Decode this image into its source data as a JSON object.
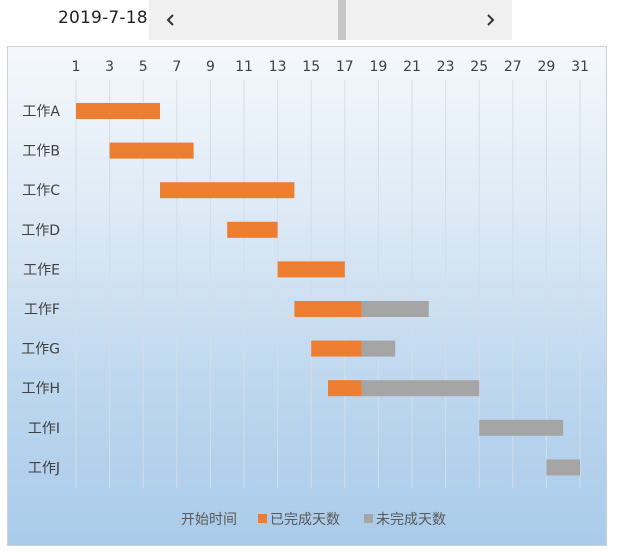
{
  "toolbar": {
    "date": "2019-7-18",
    "prev_icon": "chevron-left-icon",
    "next_icon": "chevron-right-icon"
  },
  "chart_data": {
    "type": "bar",
    "orientation": "horizontal-stacked",
    "title": "",
    "x_ticks": [
      1,
      3,
      5,
      7,
      9,
      11,
      13,
      15,
      17,
      19,
      21,
      23,
      25,
      27,
      29,
      31
    ],
    "xlim": [
      1,
      31
    ],
    "x_axis_position": "top",
    "grid": true,
    "categories": [
      "工作A",
      "工作B",
      "工作C",
      "工作D",
      "工作E",
      "工作F",
      "工作G",
      "工作H",
      "工作I",
      "工作J"
    ],
    "series": [
      {
        "name": "开始时间",
        "values": [
          1,
          3,
          6,
          10,
          13,
          14,
          15,
          16,
          25,
          29
        ],
        "color": "none"
      },
      {
        "name": "已完成天数",
        "values": [
          5,
          5,
          8,
          3,
          4,
          4,
          3,
          2,
          0,
          0
        ],
        "color": "#ED7D31"
      },
      {
        "name": "未完成天数",
        "values": [
          0,
          0,
          0,
          0,
          0,
          4,
          2,
          7,
          5,
          2
        ],
        "color": "#A5A5A5"
      }
    ],
    "legend_position": "bottom"
  }
}
